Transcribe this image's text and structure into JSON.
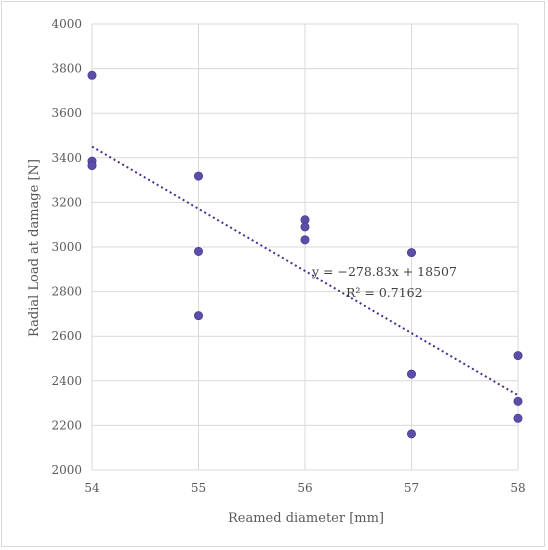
{
  "chart_data": {
    "type": "scatter",
    "xlabel": "Reamed diameter [mm]",
    "ylabel": "Radial Load at  damage [N]",
    "xlim": [
      54,
      58
    ],
    "ylim": [
      2000,
      4000
    ],
    "xticks": [
      54,
      55,
      56,
      57,
      58
    ],
    "yticks": [
      2000,
      2200,
      2400,
      2600,
      2800,
      3000,
      3200,
      3400,
      3600,
      3800,
      4000
    ],
    "grid": true,
    "legend": "none",
    "point_color": "#5b4ea8",
    "trendline_color": "#4b2c8f",
    "points": [
      {
        "x": 54,
        "y": 3770
      },
      {
        "x": 54,
        "y": 3385
      },
      {
        "x": 54,
        "y": 3365
      },
      {
        "x": 55,
        "y": 3318
      },
      {
        "x": 55,
        "y": 2980
      },
      {
        "x": 55,
        "y": 2692
      },
      {
        "x": 56,
        "y": 3122
      },
      {
        "x": 56,
        "y": 3090
      },
      {
        "x": 56,
        "y": 3032
      },
      {
        "x": 57,
        "y": 2975
      },
      {
        "x": 57,
        "y": 2430
      },
      {
        "x": 57,
        "y": 2162
      },
      {
        "x": 58,
        "y": 2513
      },
      {
        "x": 58,
        "y": 2308
      },
      {
        "x": 58,
        "y": 2232
      }
    ],
    "trendline": {
      "slope": -278.83,
      "intercept": 18507,
      "equation": "y = −278.83x + 18507",
      "r2": "R² = 0.7162"
    }
  }
}
